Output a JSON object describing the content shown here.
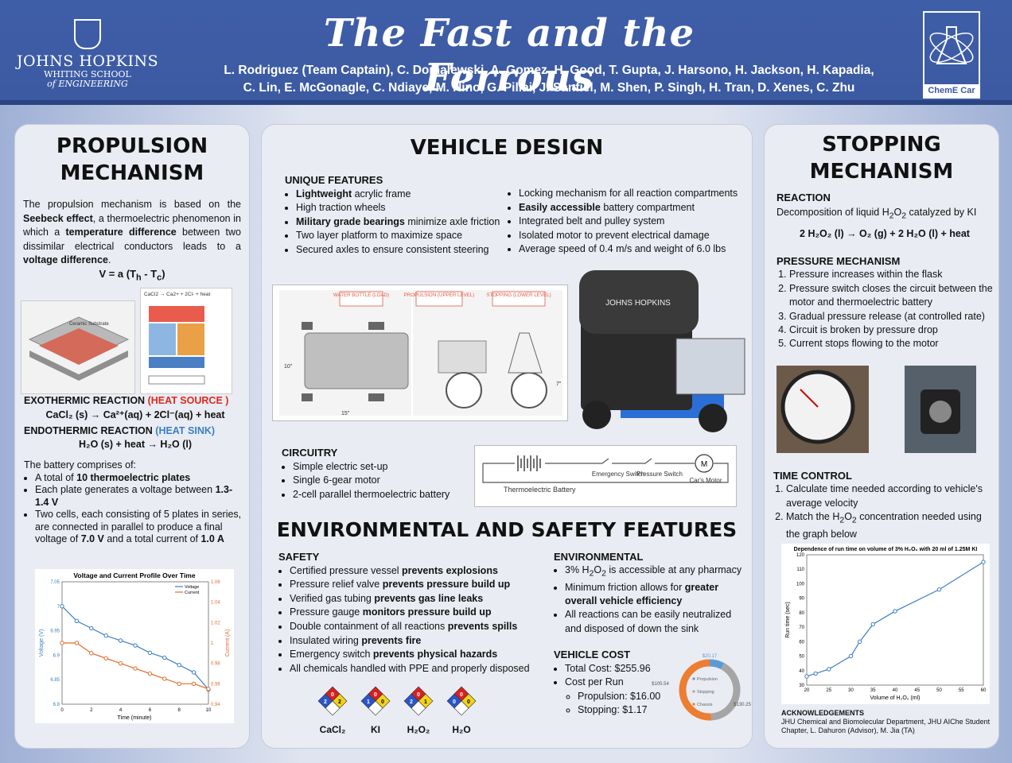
{
  "header": {
    "title": "The Fast and the Ferrous",
    "authors_line1": "L. Rodriguez (Team Captain), C. Domalewski, A. Gomez, H. Good, T. Gupta, J. Harsono, H. Jackson, H. Kapadia,",
    "authors_line2": "C. Lin, E. McGonagle, C. Ndiaye, M. Nino, G. Pillai, J. Sanfiel, M. Shen, P. Singh, H. Tran, D. Xenes, C. Zhu",
    "logo_name": "JOHNS HOPKINS",
    "logo_sub1": "WHITING SCHOOL",
    "logo_sub2": "of ENGINEERING",
    "logo2": "ChemE Car"
  },
  "propulsion": {
    "title1": "PROPULSION",
    "title2": "MECHANISM",
    "intro_a": "The propulsion mechanism is based on the ",
    "intro_b": "Seebeck effect",
    "intro_c": ", a thermoelectric phenomenon in which a ",
    "intro_d": "temperature difference",
    "intro_e": " between two dissimilar electrical conductors leads to a ",
    "intro_f": "voltage difference",
    "intro_g": ".",
    "formula": "V = a (T",
    "formula_h": "h",
    "formula_mid": " - T",
    "formula_c": "c",
    "formula_end": ")",
    "img1_label": "Ceramic Substrate",
    "img2_label": "CaCl2 → Ca2+ + 2Cl- + heat",
    "exo_title": "EXOTHERMIC REACTION ",
    "exo_tag": "(HEAT SOURCE )",
    "exo_eq": "CaCl₂ (s) → Ca²⁺(aq) + 2Cl⁻(aq) + heat",
    "endo_title": "ENDOTHERMIC REACTION ",
    "endo_tag": "(HEAT SINK)",
    "endo_eq": "H₂O (s) +  heat → H₂O (l)",
    "battery_intro": "The battery comprises of:",
    "b1_a": "A total of ",
    "b1_b": "10 thermoelectric plates",
    "b2_a": "Each plate generates a voltage between ",
    "b2_b": "1.3-1.4 V",
    "b3_a": "Two cells, each consisting of 5 plates in series, are connected in parallel to produce a final voltage of ",
    "b3_b": "7.0 V",
    "b3_c": " and a total current of ",
    "b3_d": "1.0 A"
  },
  "chart_data": [
    {
      "type": "line",
      "title": "Voltage and Current Profile Over Time",
      "xlabel": "Time (minute)",
      "ylabel": "Voltage (V)",
      "y2label": "Current (A)",
      "x": [
        0,
        1,
        2,
        3,
        4,
        5,
        6,
        7,
        8,
        9,
        10
      ],
      "xlim": [
        0,
        10
      ],
      "xticks": [
        0,
        2,
        4,
        6,
        8,
        10
      ],
      "ylim": [
        6.8,
        7.05
      ],
      "yticks": [
        6.8,
        6.85,
        6.9,
        6.95,
        7,
        7.05
      ],
      "y2lim": [
        0.94,
        1.06
      ],
      "y2ticks": [
        0.94,
        0.96,
        0.98,
        1,
        1.02,
        1.04,
        1.06
      ],
      "series": [
        {
          "name": "Voltage",
          "axis": "left",
          "color": "#3a7fc1",
          "values": [
            7.0,
            6.97,
            6.955,
            6.94,
            6.93,
            6.92,
            6.905,
            6.895,
            6.88,
            6.865,
            6.83
          ]
        },
        {
          "name": "Current",
          "axis": "right",
          "color": "#e36c2c",
          "values": [
            1.0,
            1.0,
            0.99,
            0.985,
            0.98,
            0.975,
            0.97,
            0.965,
            0.96,
            0.96,
            0.955
          ]
        }
      ],
      "legend": "top-right"
    },
    {
      "type": "line",
      "title": "Dependence of run time on volume of 3% H₂O₂ with 20 ml of 1.25M KI",
      "xlabel": "Volume of H₂O₂ (ml)",
      "ylabel": "Run time (sec)",
      "x": [
        20,
        22,
        25,
        30,
        32,
        35,
        40,
        50,
        60
      ],
      "values": [
        36,
        38,
        41,
        50,
        60,
        72,
        81,
        96,
        115
      ],
      "xlim": [
        20,
        60
      ],
      "xticks": [
        20,
        25,
        30,
        35,
        40,
        45,
        50,
        55,
        60
      ],
      "ylim": [
        30,
        120
      ],
      "yticks": [
        30,
        40,
        50,
        60,
        70,
        80,
        90,
        100,
        110,
        120
      ],
      "color": "#3a7fc1"
    },
    {
      "type": "pie",
      "categories": [
        "Propulsion",
        "Stopping",
        "Chassis"
      ],
      "labels": [
        "$20.17",
        "$105.54",
        "$130.25"
      ],
      "values": [
        20.17,
        105.54,
        130.25
      ],
      "colors": [
        "#5b9bd5",
        "#a5a5a5",
        "#ed7d31"
      ],
      "legend": "inside"
    }
  ],
  "vehicle": {
    "title": "VEHICLE DESIGN",
    "features_title": "UNIQUE FEATURES",
    "f1_b": "Lightweight",
    "f1_c": " acrylic frame",
    "f2": "High traction wheels",
    "f3_b": "Military grade bearings",
    "f3_c": " minimize axle friction",
    "f4": "Two layer platform to maximize space",
    "f5": "Secured axles to ensure consistent steering",
    "f6": "Locking mechanism for all reaction compartments",
    "f7_b": "Easily accessible",
    "f7_c": " battery compartment",
    "f8": "Integrated belt and pulley system",
    "f9": "Isolated motor to prevent electrical damage",
    "f10": "Average speed of 0.4 m/s and weight of 6.0 lbs",
    "d_label1": "WATER BOTTLE (LOAD)",
    "d_label2": "PROPULSION (UPPER LEVEL)",
    "d_label3": "STOPPING (LOWER LEVEL)",
    "d_dim1": "10\"",
    "d_dim2": "15\"",
    "d_dim3": "7\"",
    "car_text": "JOHNS HOPKINS",
    "circuit_title": "CIRCUITRY",
    "c1": "Simple electric set-up",
    "c2": "Single 6-gear motor",
    "c3": "2-cell parallel thermoelectric battery",
    "cd_battery": "Thermoelectric Battery",
    "cd_em": "Emergency Switch",
    "cd_ps": "Pressure Switch",
    "cd_motor": "Car's Motor",
    "cd_m": "M"
  },
  "env": {
    "title": "ENVIRONMENTAL AND SAFETY FEATURES",
    "safety_title": "SAFETY",
    "s1_a": "Certified pressure vessel ",
    "s1_b": "prevents explosions",
    "s2_a": "Pressure relief valve ",
    "s2_b": "prevents pressure build up",
    "s3_a": "Verified gas tubing ",
    "s3_b": "prevents gas line leaks",
    "s4_a": "Pressure gauge ",
    "s4_b": "monitors pressure build up",
    "s5_a": "Double containment of all reactions ",
    "s5_b": "prevents spills",
    "s6_a": "Insulated wiring ",
    "s6_b": "prevents fire",
    "s7_a": "Emergency switch ",
    "s7_b": "prevents physical hazards",
    "s8": "All chemicals handled with PPE and properly disposed",
    "nfpa": [
      {
        "label": "CaCl₂",
        "health": "2",
        "fire": "0",
        "react": "2"
      },
      {
        "label": "KI",
        "health": "1",
        "fire": "0",
        "react": "0"
      },
      {
        "label": "H₂O₂",
        "health": "2",
        "fire": "0",
        "react": "1"
      },
      {
        "label": "H₂O",
        "health": "0",
        "fire": "0",
        "react": "0"
      }
    ],
    "environmental_title": "ENVIRONMENTAL",
    "e1_a": "3% H",
    "e1_b": "2",
    "e1_c": "O",
    "e1_d": "2",
    "e1_e": " is accessible at any pharmacy",
    "e2_a": "Minimum friction allows for ",
    "e2_b": "greater overall vehicle efficiency",
    "e3": "All reactions can be easily neutralized and disposed of down the sink",
    "cost_title": "VEHICLE COST",
    "cost1": "Total Cost: $255.96",
    "cost2": "Cost per Run",
    "cost3": "Propulsion: $16.00",
    "cost4": "Stopping: $1.17"
  },
  "stopping": {
    "title1": "STOPPING",
    "title2": "MECHANISM",
    "reaction_title": "REACTION",
    "reaction_text_a": "Decomposition of liquid H",
    "reaction_text_b": "2",
    "reaction_text_c": "O",
    "reaction_text_d": "2",
    "reaction_text_e": " catalyzed by KI",
    "reaction_eq": "2 H₂O₂ (l) → O₂ (g) + 2 H₂O (l) + heat",
    "pressure_title": "PRESSURE MECHANISM",
    "p1": "Pressure increases within the flask",
    "p2": "Pressure switch closes the circuit between the motor and thermoelectric battery",
    "p3": "Gradual pressure release (at controlled rate)",
    "p4": "Circuit is broken by pressure drop",
    "p5": "Current stops flowing to the motor",
    "time_title": "TIME CONTROL",
    "t1": "Calculate time needed according to vehicle's average velocity",
    "t2_a": "Match the H",
    "t2_b": "2",
    "t2_c": "O",
    "t2_d": "2",
    "t2_e": " concentration needed using the graph below",
    "ack_title": "ACKNOWLEDGEMENTS",
    "ack_text": "JHU Chemical and Biomolecular Department, JHU AIChe Student Chapter, L. Dahuron (Advisor), M. Jia (TA)"
  }
}
